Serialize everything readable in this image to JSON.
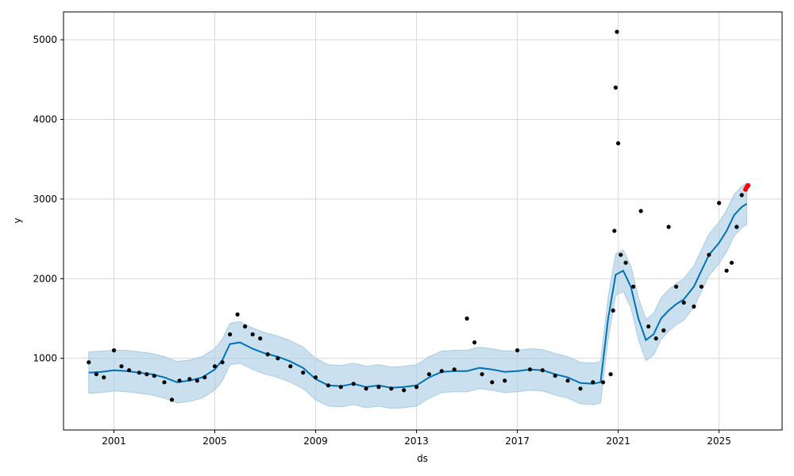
{
  "chart_data": {
    "type": "scatter",
    "xlabel": "ds",
    "ylabel": "y",
    "title": "",
    "x_ticks": [
      "2001",
      "2005",
      "2009",
      "2013",
      "2017",
      "2021",
      "2025"
    ],
    "y_ticks": [
      "1000",
      "2000",
      "3000",
      "4000",
      "5000"
    ],
    "xlim": [
      1999.0,
      2027.5
    ],
    "ylim": [
      100,
      5350
    ],
    "grid": true,
    "legend": "none",
    "colors": {
      "observed": "#000000",
      "forecast_line": "#0072B2",
      "uncertainty_band": "#a9cbe3",
      "highlight": "#ff0000"
    },
    "series": [
      {
        "role": "trend",
        "x": [
          2000.0,
          2000.5,
          2001.0,
          2001.5,
          2002.0,
          2002.5,
          2003.0,
          2003.5,
          2004.0,
          2004.5,
          2005.0,
          2005.3,
          2005.6,
          2006.0,
          2006.5,
          2007.0,
          2007.5,
          2008.0,
          2008.5,
          2009.0,
          2009.5,
          2010.0,
          2010.5,
          2011.0,
          2011.5,
          2012.0,
          2012.5,
          2013.0,
          2013.5,
          2014.0,
          2014.5,
          2015.0,
          2015.5,
          2016.0,
          2016.5,
          2017.0,
          2017.5,
          2018.0,
          2018.5,
          2019.0,
          2019.5,
          2020.0,
          2020.3,
          2020.6,
          2020.9,
          2021.2,
          2021.5,
          2021.8,
          2022.1,
          2022.4,
          2022.7,
          2023.0,
          2023.3,
          2023.6,
          2024.0,
          2024.3,
          2024.6,
          2025.0,
          2025.3,
          2025.6,
          2025.9,
          2026.1
        ],
        "y": [
          820,
          830,
          850,
          840,
          820,
          800,
          760,
          700,
          720,
          760,
          860,
          980,
          1180,
          1200,
          1120,
          1060,
          1020,
          960,
          880,
          740,
          660,
          650,
          680,
          640,
          660,
          630,
          640,
          660,
          760,
          830,
          840,
          840,
          880,
          860,
          830,
          840,
          860,
          850,
          800,
          760,
          690,
          680,
          700,
          1500,
          2050,
          2100,
          1900,
          1500,
          1230,
          1300,
          1500,
          1600,
          1680,
          1740,
          1900,
          2100,
          2300,
          2450,
          2600,
          2800,
          2900,
          2940
        ]
      },
      {
        "role": "uncertainty_upper",
        "x": [
          2000.0,
          2000.5,
          2001.0,
          2001.5,
          2002.0,
          2002.5,
          2003.0,
          2003.5,
          2004.0,
          2004.5,
          2005.0,
          2005.3,
          2005.6,
          2006.0,
          2006.5,
          2007.0,
          2007.5,
          2008.0,
          2008.5,
          2009.0,
          2009.5,
          2010.0,
          2010.5,
          2011.0,
          2011.5,
          2012.0,
          2012.5,
          2013.0,
          2013.5,
          2014.0,
          2014.5,
          2015.0,
          2015.5,
          2016.0,
          2016.5,
          2017.0,
          2017.5,
          2018.0,
          2018.5,
          2019.0,
          2019.5,
          2020.0,
          2020.3,
          2020.6,
          2020.9,
          2021.2,
          2021.5,
          2021.8,
          2022.1,
          2022.4,
          2022.7,
          2023.0,
          2023.3,
          2023.6,
          2024.0,
          2024.3,
          2024.6,
          2025.0,
          2025.3,
          2025.6,
          2025.9,
          2026.1
        ],
        "y": [
          1080,
          1090,
          1100,
          1100,
          1080,
          1060,
          1020,
          960,
          980,
          1020,
          1120,
          1240,
          1440,
          1460,
          1380,
          1320,
          1280,
          1220,
          1140,
          1000,
          920,
          910,
          940,
          900,
          920,
          890,
          900,
          920,
          1020,
          1090,
          1100,
          1100,
          1140,
          1120,
          1090,
          1100,
          1120,
          1110,
          1060,
          1020,
          950,
          940,
          960,
          1760,
          2310,
          2360,
          2160,
          1760,
          1490,
          1560,
          1760,
          1860,
          1940,
          2000,
          2160,
          2360,
          2560,
          2710,
          2860,
          3060,
          3160,
          3200
        ]
      },
      {
        "role": "uncertainty_lower",
        "x": [
          2000.0,
          2000.5,
          2001.0,
          2001.5,
          2002.0,
          2002.5,
          2003.0,
          2003.5,
          2004.0,
          2004.5,
          2005.0,
          2005.3,
          2005.6,
          2006.0,
          2006.5,
          2007.0,
          2007.5,
          2008.0,
          2008.5,
          2009.0,
          2009.5,
          2010.0,
          2010.5,
          2011.0,
          2011.5,
          2012.0,
          2012.5,
          2013.0,
          2013.5,
          2014.0,
          2014.5,
          2015.0,
          2015.5,
          2016.0,
          2016.5,
          2017.0,
          2017.5,
          2018.0,
          2018.5,
          2019.0,
          2019.5,
          2020.0,
          2020.3,
          2020.6,
          2020.9,
          2021.2,
          2021.5,
          2021.8,
          2022.1,
          2022.4,
          2022.7,
          2023.0,
          2023.3,
          2023.6,
          2024.0,
          2024.3,
          2024.6,
          2025.0,
          2025.3,
          2025.6,
          2025.9,
          2026.1
        ],
        "y": [
          560,
          570,
          590,
          580,
          560,
          540,
          500,
          440,
          460,
          500,
          600,
          720,
          920,
          940,
          860,
          800,
          760,
          700,
          620,
          480,
          400,
          390,
          420,
          380,
          400,
          370,
          380,
          400,
          500,
          570,
          580,
          580,
          620,
          600,
          570,
          580,
          600,
          590,
          540,
          500,
          430,
          420,
          440,
          1240,
          1790,
          1840,
          1640,
          1240,
          970,
          1040,
          1240,
          1340,
          1420,
          1480,
          1640,
          1840,
          2040,
          2190,
          2340,
          2540,
          2640,
          2680
        ]
      },
      {
        "role": "observed",
        "x": [
          2000.0,
          2000.3,
          2000.6,
          2001.0,
          2001.3,
          2001.6,
          2002.0,
          2002.3,
          2002.6,
          2003.0,
          2003.3,
          2003.6,
          2004.0,
          2004.3,
          2004.6,
          2005.0,
          2005.3,
          2005.6,
          2005.9,
          2006.2,
          2006.5,
          2006.8,
          2007.1,
          2007.5,
          2008.0,
          2008.5,
          2009.0,
          2009.5,
          2010.0,
          2010.5,
          2011.0,
          2011.5,
          2012.0,
          2012.5,
          2013.0,
          2013.5,
          2014.0,
          2014.5,
          2015.0,
          2015.3,
          2015.6,
          2016.0,
          2016.5,
          2017.0,
          2017.5,
          2018.0,
          2018.5,
          2019.0,
          2019.5,
          2020.0,
          2020.4,
          2020.7,
          2020.8,
          2020.85,
          2020.9,
          2020.95,
          2021.0,
          2021.1,
          2021.3,
          2021.6,
          2021.9,
          2022.2,
          2022.5,
          2022.8,
          2023.0,
          2023.3,
          2023.6,
          2024.0,
          2024.3,
          2024.6,
          2025.0,
          2025.3,
          2025.5,
          2025.7,
          2025.9
        ],
        "y": [
          950,
          800,
          760,
          1100,
          900,
          850,
          820,
          800,
          780,
          700,
          480,
          720,
          740,
          720,
          760,
          900,
          950,
          1300,
          1550,
          1400,
          1300,
          1250,
          1050,
          1000,
          900,
          820,
          760,
          660,
          640,
          680,
          620,
          640,
          620,
          600,
          640,
          800,
          840,
          860,
          1500,
          1200,
          800,
          700,
          720,
          1100,
          860,
          850,
          780,
          720,
          620,
          700,
          700,
          800,
          1600,
          2600,
          4400,
          5100,
          3700,
          2300,
          2200,
          1900,
          2850,
          1400,
          1250,
          1350,
          2650,
          1900,
          1700,
          1650,
          1900,
          2300,
          2950,
          2100,
          2200,
          2650,
          3050
        ]
      },
      {
        "role": "highlight",
        "x": [
          2026.05,
          2026.1,
          2026.15
        ],
        "y": [
          3120,
          3150,
          3170
        ]
      }
    ]
  }
}
